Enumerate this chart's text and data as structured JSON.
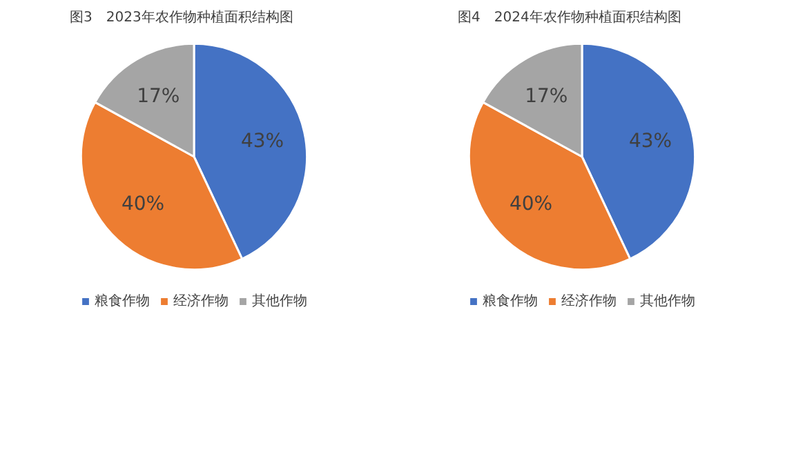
{
  "chart_data": [
    {
      "type": "pie",
      "title": "图3　2023年农作物种植面积结构图",
      "categories": [
        "粮食作物",
        "经济作物",
        "其他作物"
      ],
      "values": [
        43,
        40,
        17
      ],
      "value_labels": [
        "43%",
        "40%",
        "17%"
      ],
      "colors": [
        "#4472c4",
        "#ed7d31",
        "#a5a5a5"
      ],
      "legend": "bottom"
    },
    {
      "type": "pie",
      "title": "图4　2024年农作物种植面积结构图",
      "categories": [
        "粮食作物",
        "经济作物",
        "其他作物"
      ],
      "values": [
        43,
        40,
        17
      ],
      "value_labels": [
        "43%",
        "40%",
        "17%"
      ],
      "colors": [
        "#4472c4",
        "#ed7d31",
        "#a5a5a5"
      ],
      "legend": "bottom"
    }
  ]
}
